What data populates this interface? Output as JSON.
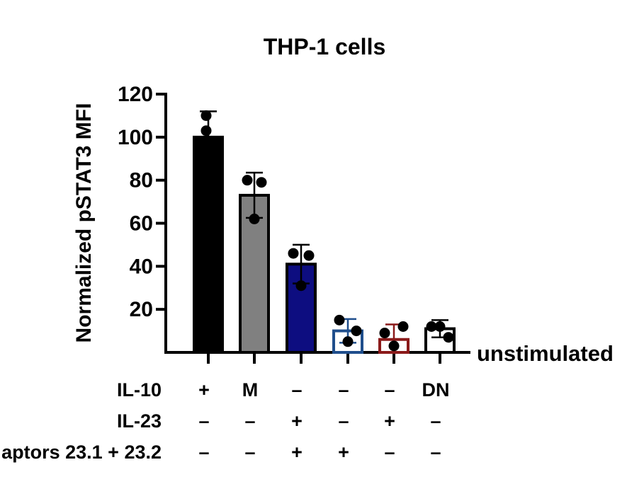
{
  "chart_data": {
    "type": "bar",
    "title": "THP-1 cells",
    "ylabel": "Normalized pSTAT3 MFI",
    "baseline_label": "unstimulated",
    "ylim": [
      0,
      120
    ],
    "yticks": [
      20,
      40,
      60,
      80,
      100,
      120
    ],
    "bars": [
      {
        "value": 100,
        "error": 12,
        "points": [
          103,
          110
        ],
        "fill": "#000000",
        "edge": "#000000",
        "hollow": false
      },
      {
        "value": 73,
        "error": 10.5,
        "points": [
          80,
          79,
          62
        ],
        "fill": "#808080",
        "edge": "#000000",
        "hollow": false
      },
      {
        "value": 41,
        "error": 9,
        "points": [
          46,
          45,
          31
        ],
        "fill": "#0d0d80",
        "edge": "#000000",
        "hollow": false
      },
      {
        "value": 10,
        "error": 5.5,
        "points": [
          15,
          10,
          5
        ],
        "fill": "#ffffff",
        "edge": "#1f4e8c",
        "hollow": true
      },
      {
        "value": 6,
        "error": 7,
        "points": [
          9,
          12,
          3
        ],
        "fill": "#ffffff",
        "edge": "#8b1a1a",
        "hollow": true
      },
      {
        "value": 11,
        "error": 4,
        "points": [
          12,
          7,
          12
        ],
        "fill": "#ffffff",
        "edge": "#000000",
        "hollow": true
      }
    ],
    "condition_rows": [
      {
        "label": "IL-10",
        "values": [
          "+",
          "M",
          "–",
          "–",
          "–",
          "DN"
        ]
      },
      {
        "label": "IL-23",
        "values": [
          "–",
          "–",
          "+",
          "–",
          "+",
          "–"
        ]
      },
      {
        "label": "aptors 23.1 + 23.2",
        "values": [
          "–",
          "–",
          "+",
          "+",
          "–",
          "–"
        ]
      }
    ]
  }
}
